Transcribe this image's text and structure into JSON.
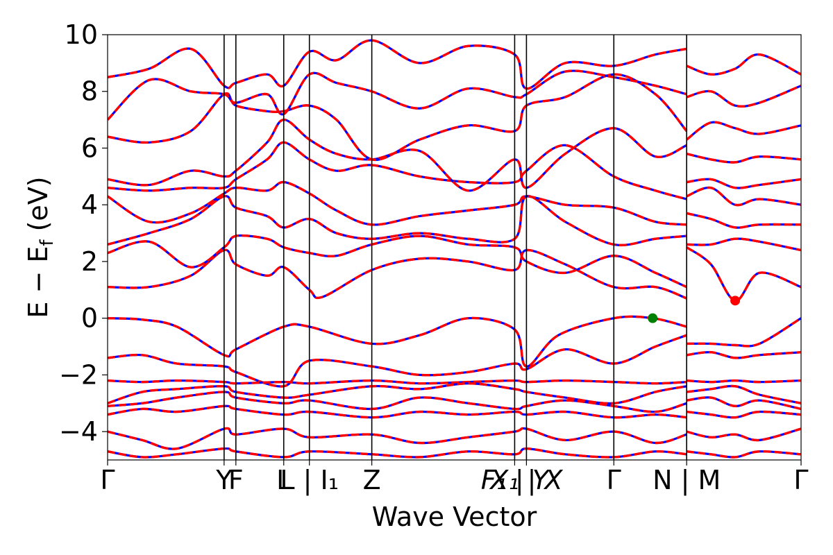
{
  "chart_data": {
    "type": "line",
    "xlabel": "Wave Vector",
    "ylabel": "E − E_f (eV)",
    "ylabel_parts": {
      "main": "E − E",
      "sub": "f",
      "unit": " (eV)"
    },
    "ylim": [
      -5,
      10
    ],
    "yticks": [
      -4,
      -2,
      0,
      2,
      4,
      6,
      8,
      10
    ],
    "ytick_labels": [
      "−4",
      "−2",
      "0",
      "2",
      "4",
      "6",
      "8",
      "10"
    ],
    "xlim": [
      0,
      1
    ],
    "kpoints": [
      {
        "x": 0.0,
        "label": "Γ"
      },
      {
        "x": 0.168,
        "label": "Y"
      },
      {
        "x": 0.185,
        "label": "F"
      },
      {
        "x": 0.254,
        "label": "L"
      },
      {
        "x": 0.291,
        "label": "L | I1"
      },
      {
        "x": 0.381,
        "label": "Z"
      },
      {
        "x": 0.587,
        "label": "F1 | Y"
      },
      {
        "x": 0.604,
        "label": "X1 | X"
      },
      {
        "x": 0.73,
        "label": "Γ"
      },
      {
        "x": 0.835,
        "label": "N | M"
      },
      {
        "x": 1.0,
        "label": "Γ"
      }
    ],
    "tick_texts": [
      {
        "x": 0.0,
        "text": "Γ",
        "italic": false
      },
      {
        "x": 0.168,
        "text": "Y",
        "italic": false
      },
      {
        "x": 0.185,
        "text": "F",
        "italic": false
      },
      {
        "x": 0.254,
        "text": "L",
        "italic": false
      },
      {
        "x": 0.291,
        "text": "L | I₁",
        "italic": false
      },
      {
        "x": 0.381,
        "text": "Z",
        "italic": false
      },
      {
        "x": 0.587,
        "text": "F₁ | Y",
        "italic": true
      },
      {
        "x": 0.604,
        "text": "X₁ | X",
        "italic": true
      },
      {
        "x": 0.73,
        "text": "Γ",
        "italic": false
      },
      {
        "x": 0.835,
        "text": "N | M",
        "italic": false
      },
      {
        "x": 1.0,
        "text": "Γ",
        "italic": false
      }
    ],
    "series_styles": [
      {
        "color": "#0000ff",
        "dash": "solid"
      },
      {
        "color": "#ff0000",
        "dash": "dashed"
      }
    ],
    "markers": [
      {
        "x": 0.786,
        "y": 0.0,
        "color": "#008000"
      },
      {
        "x": 0.905,
        "y": 0.62,
        "color": "#ff0000"
      }
    ],
    "bands": [
      {
        "x": [
          0,
          0.05,
          0.1,
          0.168,
          0.185,
          0.254,
          0.291,
          0.381,
          0.45,
          0.52,
          0.587,
          0.604,
          0.65,
          0.73,
          0.786,
          0.835
        ],
        "y": [
          0,
          -0.05,
          -0.3,
          -1.3,
          -1.1,
          -0.3,
          -0.3,
          -0.9,
          -0.6,
          0,
          -0.4,
          -1.7,
          -0.6,
          0,
          0,
          -0.3
        ]
      },
      {
        "x": [
          0.835,
          0.87,
          0.905,
          0.94,
          1.0
        ],
        "y": [
          -0.9,
          -0.9,
          -0.95,
          -0.9,
          0
        ]
      },
      {
        "x": [
          0,
          0.06,
          0.12,
          0.168,
          0.185,
          0.23,
          0.254,
          0.291,
          0.31,
          0.381,
          0.45,
          0.52,
          0.587,
          0.604,
          0.66,
          0.73,
          0.79,
          0.835
        ],
        "y": [
          1.1,
          1.1,
          1.5,
          2.4,
          1.9,
          1.5,
          1.8,
          1.0,
          0.75,
          1.7,
          2.1,
          2.0,
          1.7,
          2.4,
          1.9,
          1.1,
          1.1,
          0.7
        ]
      },
      {
        "x": [
          0.835,
          0.87,
          0.905,
          0.94,
          1.0
        ],
        "y": [
          2.5,
          1.9,
          0.62,
          1.6,
          1.1
        ]
      },
      {
        "x": [
          0,
          0.06,
          0.12,
          0.168,
          0.185,
          0.23,
          0.254,
          0.291,
          0.33,
          0.381,
          0.45,
          0.52,
          0.587,
          0.604,
          0.66,
          0.73,
          0.79,
          0.835
        ],
        "y": [
          2.3,
          2.7,
          1.8,
          2.5,
          2.9,
          2.8,
          2.5,
          2.3,
          2.2,
          2.6,
          2.9,
          2.6,
          2.5,
          2.0,
          1.6,
          2.2,
          1.6,
          1.1
        ]
      },
      {
        "x": [
          0.835,
          0.87,
          0.905,
          0.94,
          1.0
        ],
        "y": [
          2.6,
          2.6,
          2.8,
          2.7,
          2.4
        ]
      },
      {
        "x": [
          0,
          0.06,
          0.12,
          0.168,
          0.185,
          0.23,
          0.254,
          0.291,
          0.33,
          0.381,
          0.45,
          0.52,
          0.587,
          0.604,
          0.66,
          0.73,
          0.79,
          0.835
        ],
        "y": [
          2.6,
          3.0,
          3.5,
          4.3,
          3.9,
          3.6,
          3.2,
          3.5,
          3.0,
          2.8,
          3.0,
          2.8,
          2.8,
          4.3,
          3.4,
          2.6,
          2.8,
          2.9
        ]
      },
      {
        "x": [
          0.835,
          0.87,
          0.905,
          0.94,
          1.0
        ],
        "y": [
          3.7,
          3.5,
          3.2,
          3.3,
          3.3
        ]
      },
      {
        "x": [
          0,
          0.06,
          0.12,
          0.168,
          0.185,
          0.23,
          0.254,
          0.291,
          0.33,
          0.381,
          0.45,
          0.52,
          0.587,
          0.604,
          0.66,
          0.73,
          0.79,
          0.835
        ],
        "y": [
          4.3,
          3.4,
          3.7,
          4.4,
          4.6,
          4.5,
          4.8,
          4.4,
          3.8,
          3.3,
          3.6,
          3.8,
          4.0,
          4.3,
          4.0,
          3.9,
          3.4,
          3.3
        ]
      },
      {
        "x": [
          0.835,
          0.87,
          0.905,
          0.94,
          1.0
        ],
        "y": [
          4.3,
          4.6,
          4.0,
          4.2,
          4.0
        ]
      },
      {
        "x": [
          0,
          0.06,
          0.12,
          0.168,
          0.185,
          0.23,
          0.254,
          0.291,
          0.33,
          0.381,
          0.45,
          0.52,
          0.587,
          0.604,
          0.66,
          0.73,
          0.79,
          0.835
        ],
        "y": [
          4.6,
          4.5,
          4.6,
          4.6,
          4.9,
          5.6,
          6.2,
          5.6,
          5.2,
          5.4,
          5.0,
          4.8,
          4.8,
          5.2,
          6.1,
          5.0,
          4.5,
          4.2
        ]
      },
      {
        "x": [
          0.835,
          0.87,
          0.905,
          0.94,
          1.0
        ],
        "y": [
          4.8,
          4.9,
          4.6,
          4.7,
          4.9
        ]
      },
      {
        "x": [
          0,
          0.06,
          0.12,
          0.168,
          0.185,
          0.23,
          0.254,
          0.291,
          0.33,
          0.381,
          0.45,
          0.52,
          0.587,
          0.604,
          0.66,
          0.73,
          0.79,
          0.835
        ],
        "y": [
          4.9,
          4.7,
          5.2,
          5.0,
          5.2,
          6.2,
          7.0,
          6.3,
          5.8,
          5.6,
          5.9,
          4.5,
          5.6,
          4.6,
          5.8,
          6.7,
          5.7,
          6.1
        ]
      },
      {
        "x": [
          0.835,
          0.87,
          0.905,
          0.94,
          1.0
        ],
        "y": [
          5.8,
          5.6,
          5.5,
          5.7,
          5.6
        ]
      },
      {
        "x": [
          0,
          0.06,
          0.12,
          0.168,
          0.185,
          0.23,
          0.254,
          0.291,
          0.33,
          0.381,
          0.45,
          0.52,
          0.587,
          0.604,
          0.66,
          0.73,
          0.79,
          0.835
        ],
        "y": [
          6.4,
          6.2,
          6.6,
          7.9,
          7.5,
          7.3,
          7.3,
          7.5,
          7.0,
          5.6,
          6.3,
          6.8,
          6.6,
          7.5,
          7.8,
          8.6,
          7.9,
          6.6
        ]
      },
      {
        "x": [
          0.835,
          0.87,
          0.905,
          0.94,
          1.0
        ],
        "y": [
          6.3,
          6.9,
          6.7,
          6.5,
          6.8
        ]
      },
      {
        "x": [
          0,
          0.06,
          0.12,
          0.168,
          0.185,
          0.23,
          0.254,
          0.291,
          0.33,
          0.381,
          0.45,
          0.52,
          0.587,
          0.604,
          0.66,
          0.73,
          0.79,
          0.835
        ],
        "y": [
          7.0,
          8.4,
          8.0,
          7.9,
          7.6,
          7.9,
          7.2,
          8.6,
          8.3,
          8.0,
          7.4,
          8.1,
          7.8,
          7.9,
          8.7,
          8.5,
          8.2,
          7.9
        ]
      },
      {
        "x": [
          0.835,
          0.87,
          0.905,
          0.94,
          1.0
        ],
        "y": [
          7.8,
          8.0,
          7.5,
          7.6,
          8.2
        ]
      },
      {
        "x": [
          0,
          0.06,
          0.12,
          0.168,
          0.185,
          0.23,
          0.254,
          0.291,
          0.33,
          0.381,
          0.45,
          0.52,
          0.587,
          0.604,
          0.66,
          0.73,
          0.79,
          0.835
        ],
        "y": [
          8.5,
          8.8,
          9.5,
          8.2,
          8.3,
          8.6,
          8.2,
          9.4,
          9.1,
          9.8,
          9.0,
          9.6,
          9.3,
          8.1,
          9.0,
          8.9,
          9.3,
          9.5
        ]
      },
      {
        "x": [
          0.835,
          0.87,
          0.905,
          0.94,
          1.0
        ],
        "y": [
          8.9,
          8.6,
          8.8,
          9.3,
          8.6
        ]
      },
      {
        "x": [
          0,
          0.05,
          0.1,
          0.168,
          0.185,
          0.254,
          0.291,
          0.381,
          0.45,
          0.52,
          0.587,
          0.604,
          0.66,
          0.73,
          0.79,
          0.835
        ],
        "y": [
          -1.4,
          -1.3,
          -1.6,
          -1.7,
          -1.9,
          -2.4,
          -1.5,
          -1.7,
          -2.0,
          -1.9,
          -1.6,
          -1.8,
          -1.1,
          -1.6,
          -1.0,
          -0.6
        ]
      },
      {
        "x": [
          0.835,
          0.87,
          0.905,
          0.94,
          1.0
        ],
        "y": [
          -1.3,
          -1.2,
          -1.4,
          -1.3,
          -1.2
        ]
      },
      {
        "x": [
          0,
          0.05,
          0.1,
          0.168,
          0.185,
          0.254,
          0.291,
          0.381,
          0.45,
          0.52,
          0.587,
          0.604,
          0.66,
          0.73,
          0.79,
          0.835
        ],
        "y": [
          -2.2,
          -2.25,
          -2.2,
          -2.25,
          -2.3,
          -2.25,
          -2.3,
          -2.2,
          -2.3,
          -2.25,
          -2.2,
          -2.25,
          -2.2,
          -2.25,
          -2.3,
          -2.25
        ]
      },
      {
        "x": [
          0.835,
          0.87,
          0.905,
          0.94,
          1.0
        ],
        "y": [
          -2.2,
          -2.25,
          -2.2,
          -2.25,
          -2.2
        ]
      },
      {
        "x": [
          0,
          0.05,
          0.1,
          0.168,
          0.185,
          0.254,
          0.291,
          0.381,
          0.45,
          0.52,
          0.587,
          0.604,
          0.66,
          0.73,
          0.79,
          0.835
        ],
        "y": [
          -3.0,
          -2.6,
          -2.5,
          -2.4,
          -2.6,
          -2.8,
          -2.7,
          -2.4,
          -2.5,
          -2.3,
          -2.5,
          -2.6,
          -2.8,
          -3.0,
          -2.6,
          -2.4
        ]
      },
      {
        "x": [
          0.835,
          0.87,
          0.905,
          0.94,
          1.0
        ],
        "y": [
          -2.6,
          -2.5,
          -2.4,
          -2.7,
          -3.0
        ]
      },
      {
        "x": [
          0,
          0.05,
          0.1,
          0.168,
          0.185,
          0.254,
          0.291,
          0.381,
          0.45,
          0.52,
          0.587,
          0.604,
          0.66,
          0.73,
          0.79,
          0.835
        ],
        "y": [
          -3.1,
          -3.0,
          -2.8,
          -2.6,
          -2.8,
          -3.0,
          -2.9,
          -3.2,
          -2.8,
          -3.0,
          -3.2,
          -3.1,
          -2.9,
          -3.1,
          -3.3,
          -3.0
        ]
      },
      {
        "x": [
          0.835,
          0.87,
          0.905,
          0.94,
          1.0
        ],
        "y": [
          -2.9,
          -2.8,
          -3.1,
          -2.9,
          -3.2
        ]
      },
      {
        "x": [
          0,
          0.05,
          0.1,
          0.168,
          0.185,
          0.254,
          0.291,
          0.381,
          0.45,
          0.52,
          0.587,
          0.604,
          0.66,
          0.73,
          0.79,
          0.835
        ],
        "y": [
          -3.4,
          -3.2,
          -3.3,
          -3.1,
          -3.2,
          -3.4,
          -3.3,
          -3.5,
          -3.3,
          -3.4,
          -3.3,
          -3.4,
          -3.3,
          -3.5,
          -3.4,
          -3.5
        ]
      },
      {
        "x": [
          0.835,
          0.87,
          0.905,
          0.94,
          1.0
        ],
        "y": [
          -3.3,
          -3.4,
          -3.5,
          -3.3,
          -3.4
        ]
      },
      {
        "x": [
          0,
          0.05,
          0.1,
          0.168,
          0.185,
          0.254,
          0.291,
          0.381,
          0.45,
          0.52,
          0.587,
          0.604,
          0.66,
          0.73,
          0.79,
          0.835
        ],
        "y": [
          -4.0,
          -4.3,
          -4.6,
          -3.9,
          -4.1,
          -3.9,
          -4.2,
          -4.1,
          -4.4,
          -4.2,
          -4.0,
          -3.9,
          -4.3,
          -4.0,
          -4.4,
          -4.1
        ]
      },
      {
        "x": [
          0.835,
          0.87,
          0.905,
          0.94,
          1.0
        ],
        "y": [
          -4.0,
          -4.2,
          -4.1,
          -4.3,
          -3.9
        ]
      },
      {
        "x": [
          0,
          0.05,
          0.1,
          0.168,
          0.185,
          0.254,
          0.291,
          0.381,
          0.45,
          0.52,
          0.587,
          0.604,
          0.66,
          0.73,
          0.79,
          0.835
        ],
        "y": [
          -4.7,
          -4.9,
          -4.8,
          -4.6,
          -4.7,
          -4.9,
          -4.7,
          -4.8,
          -4.9,
          -4.7,
          -4.8,
          -4.6,
          -4.8,
          -4.9,
          -4.7,
          -4.8
        ]
      },
      {
        "x": [
          0.835,
          0.87,
          0.905,
          0.94,
          1.0
        ],
        "y": [
          -4.7,
          -4.8,
          -4.9,
          -4.7,
          -4.8
        ]
      }
    ]
  }
}
